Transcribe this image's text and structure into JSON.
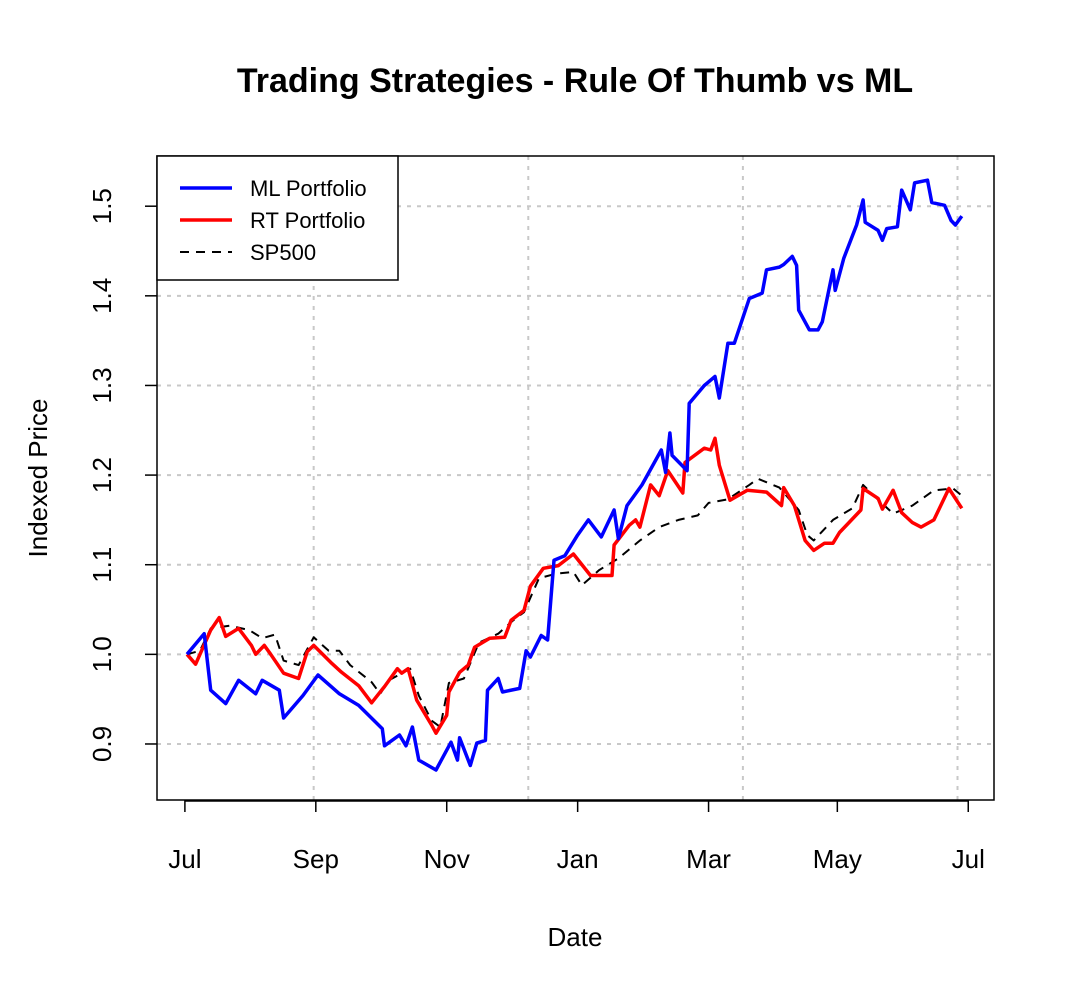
{
  "chart_data": {
    "type": "line",
    "title": "Trading Strategies - Rule Of Thumb vs ML",
    "xlabel": "Date",
    "ylabel": "Indexed Price",
    "x_units": "days since Jul 1",
    "xlim": [
      -13,
      377
    ],
    "ylim": [
      0.8375,
      1.556
    ],
    "x_ticks": [
      {
        "day": 0,
        "label": "Jul"
      },
      {
        "day": 61,
        "label": "Sep"
      },
      {
        "day": 122,
        "label": "Nov"
      },
      {
        "day": 183,
        "label": "Jan"
      },
      {
        "day": 244,
        "label": "Mar"
      },
      {
        "day": 304,
        "label": "May"
      },
      {
        "day": 365,
        "label": "Jul"
      }
    ],
    "y_ticks": [
      {
        "v": 0.9,
        "label": "0.9"
      },
      {
        "v": 1.0,
        "label": "1.0"
      },
      {
        "v": 1.1,
        "label": "1.1"
      },
      {
        "v": 1.2,
        "label": "1.2"
      },
      {
        "v": 1.3,
        "label": "1.3"
      },
      {
        "v": 1.4,
        "label": "1.4"
      },
      {
        "v": 1.5,
        "label": "1.5"
      }
    ],
    "grid": true,
    "grid_x_days": [
      60,
      160,
      260,
      360
    ],
    "legend_position": "top-left",
    "series": [
      {
        "name": "ML Portfolio",
        "color": "#0000ff",
        "dash": false,
        "x": [
          1,
          9,
          12,
          19,
          25,
          33,
          36,
          44,
          46,
          55,
          62,
          72,
          81,
          92,
          93,
          100,
          103,
          106,
          109,
          117,
          124,
          127,
          128,
          133,
          136,
          140,
          141,
          146,
          148,
          156,
          159,
          161,
          166,
          169,
          172,
          177,
          183,
          188,
          194,
          200,
          202,
          206,
          213,
          222,
          224,
          226,
          227,
          234,
          235,
          242,
          247,
          249,
          253,
          256,
          263,
          269,
          271,
          277,
          279,
          283,
          285,
          286,
          291,
          295,
          297,
          302,
          303,
          307,
          313,
          316,
          317,
          323,
          325,
          327,
          332,
          334,
          338,
          340,
          346,
          348,
          354,
          357,
          359,
          362
        ],
        "y": [
          1.0,
          1.023,
          0.96,
          0.945,
          0.971,
          0.956,
          0.971,
          0.96,
          0.929,
          0.954,
          0.977,
          0.956,
          0.943,
          0.917,
          0.898,
          0.91,
          0.898,
          0.919,
          0.882,
          0.871,
          0.902,
          0.882,
          0.907,
          0.876,
          0.901,
          0.904,
          0.96,
          0.973,
          0.958,
          0.962,
          1.004,
          0.997,
          1.021,
          1.016,
          1.105,
          1.11,
          1.133,
          1.15,
          1.131,
          1.161,
          1.129,
          1.166,
          1.189,
          1.228,
          1.203,
          1.247,
          1.222,
          1.205,
          1.28,
          1.3,
          1.31,
          1.286,
          1.347,
          1.347,
          1.397,
          1.403,
          1.429,
          1.432,
          1.435,
          1.444,
          1.434,
          1.384,
          1.362,
          1.362,
          1.371,
          1.429,
          1.406,
          1.442,
          1.479,
          1.507,
          1.482,
          1.473,
          1.462,
          1.475,
          1.477,
          1.518,
          1.496,
          1.526,
          1.529,
          1.504,
          1.501,
          1.484,
          1.479,
          1.489
        ]
      },
      {
        "name": "RT Portfolio",
        "color": "#ff0000",
        "dash": false,
        "x": [
          1,
          5,
          12,
          16,
          19,
          25,
          31,
          33,
          37,
          40,
          46,
          53,
          57,
          60,
          68,
          73,
          81,
          87,
          93,
          99,
          101,
          104,
          108,
          115,
          117,
          122,
          123,
          128,
          132,
          135,
          142,
          149,
          152,
          158,
          161,
          167,
          174,
          181,
          189,
          193,
          199,
          200,
          207,
          210,
          212,
          217,
          221,
          225,
          232,
          233,
          242,
          245,
          247,
          249,
          254,
          262,
          271,
          278,
          279,
          284,
          289,
          293,
          298,
          302,
          305,
          309,
          315,
          316,
          323,
          325,
          330,
          334,
          339,
          343,
          349,
          356,
          362
        ],
        "y": [
          1.0,
          0.989,
          1.027,
          1.041,
          1.02,
          1.029,
          1.01,
          1.0,
          1.01,
          1.0,
          0.979,
          0.973,
          1.003,
          1.01,
          0.991,
          0.98,
          0.965,
          0.946,
          0.964,
          0.984,
          0.979,
          0.984,
          0.949,
          0.921,
          0.912,
          0.932,
          0.958,
          0.98,
          0.988,
          1.008,
          1.018,
          1.019,
          1.038,
          1.049,
          1.076,
          1.096,
          1.099,
          1.112,
          1.088,
          1.088,
          1.088,
          1.122,
          1.144,
          1.15,
          1.142,
          1.189,
          1.177,
          1.205,
          1.18,
          1.214,
          1.23,
          1.228,
          1.241,
          1.211,
          1.172,
          1.183,
          1.181,
          1.166,
          1.186,
          1.166,
          1.127,
          1.116,
          1.124,
          1.124,
          1.136,
          1.146,
          1.161,
          1.185,
          1.174,
          1.162,
          1.183,
          1.158,
          1.147,
          1.142,
          1.15,
          1.185,
          1.163
        ]
      },
      {
        "name": "SP500",
        "color": "#000000",
        "dash": true,
        "x": [
          1,
          7,
          12,
          21,
          30,
          36,
          42,
          46,
          53,
          60,
          67,
          72,
          77,
          87,
          91,
          95,
          105,
          109,
          115,
          119,
          123,
          130,
          137,
          146,
          153,
          158,
          165,
          173,
          181,
          185,
          193,
          202,
          212,
          221,
          230,
          239,
          244,
          253,
          263,
          267,
          277,
          286,
          290,
          293,
          302,
          311,
          316,
          321,
          330,
          339,
          349,
          358,
          362
        ],
        "y": [
          1.0,
          1.004,
          1.029,
          1.032,
          1.027,
          1.018,
          1.022,
          0.993,
          0.988,
          1.019,
          1.004,
          1.004,
          0.988,
          0.969,
          0.956,
          0.971,
          0.984,
          0.954,
          0.926,
          0.919,
          0.968,
          0.973,
          1.013,
          1.023,
          1.038,
          1.047,
          1.085,
          1.09,
          1.092,
          1.077,
          1.094,
          1.107,
          1.127,
          1.142,
          1.15,
          1.155,
          1.169,
          1.173,
          1.189,
          1.196,
          1.186,
          1.161,
          1.133,
          1.127,
          1.15,
          1.163,
          1.189,
          1.177,
          1.157,
          1.166,
          1.183,
          1.185,
          1.177
        ]
      }
    ]
  }
}
